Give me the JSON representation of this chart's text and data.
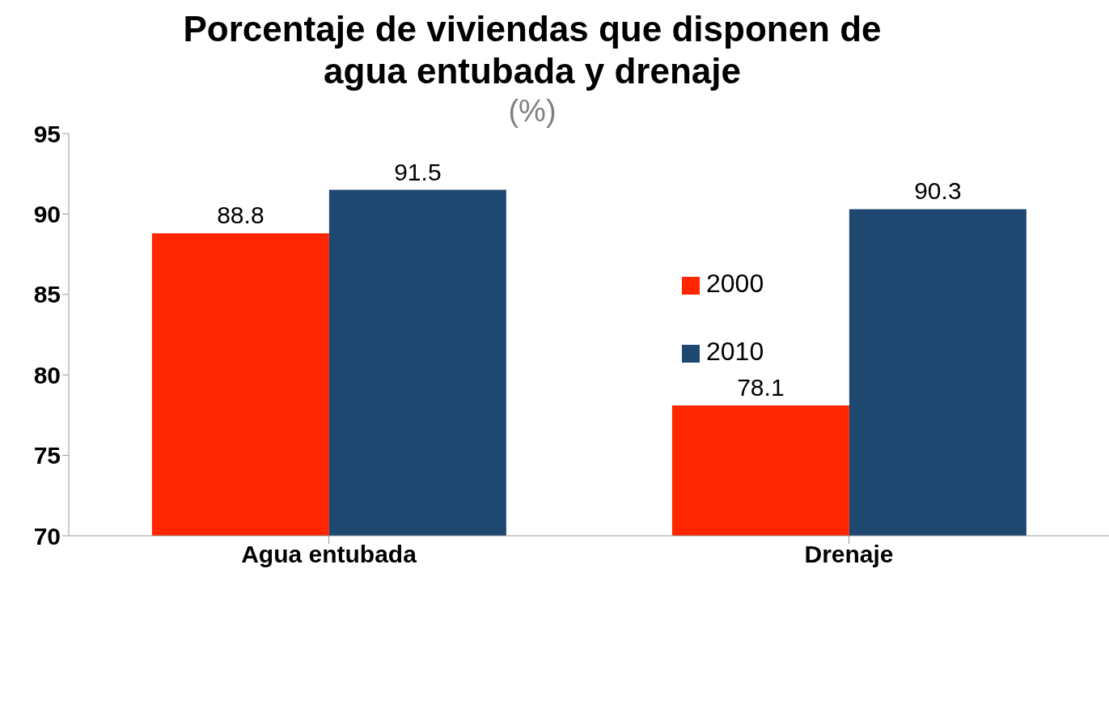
{
  "chart_data": {
    "type": "bar",
    "title": "Porcentaje de viviendas que disponen de agua entubada y drenaje",
    "subtitle": "(%)",
    "categories": [
      "Agua entubada",
      "Drenaje"
    ],
    "series": [
      {
        "name": "2000",
        "color": "#ff2600",
        "values": [
          88.8,
          78.1
        ]
      },
      {
        "name": "2010",
        "color": "#1f4870",
        "values": [
          91.5,
          90.3
        ]
      }
    ],
    "ylim": [
      70,
      95
    ],
    "yticks": [
      70,
      75,
      80,
      85,
      90,
      95
    ],
    "grid": false,
    "legend": "right",
    "data_labels": true
  }
}
